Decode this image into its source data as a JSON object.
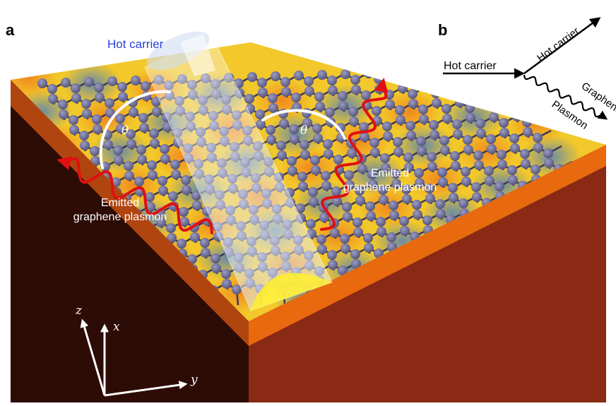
{
  "panel_a": {
    "label": "a",
    "hot_carrier": "Hot carrier",
    "theta_left": "θ",
    "theta_right": "θ",
    "emitted_left": [
      "Emitted",
      "graphene plasmon"
    ],
    "emitted_right": [
      "Emitted",
      "graphene plasmon"
    ],
    "axes": {
      "z": "z",
      "x": "x",
      "y": "y"
    }
  },
  "panel_b": {
    "label": "b",
    "hot_carrier_in": "Hot carrier",
    "hot_carrier_out": "Hot carrier",
    "graphene": "Graphene",
    "plasmon": "Plasmon"
  },
  "colors": {
    "top_surface": "#f2c82a",
    "front_orange": "#e86a10",
    "front_dark": "#8a2a12",
    "left_dark": "#4a1a0c",
    "atom": "#6f6f99",
    "bond": "#3a3a55",
    "wave": "#e01010",
    "hot_carrier_text": "#2a3fd8"
  }
}
